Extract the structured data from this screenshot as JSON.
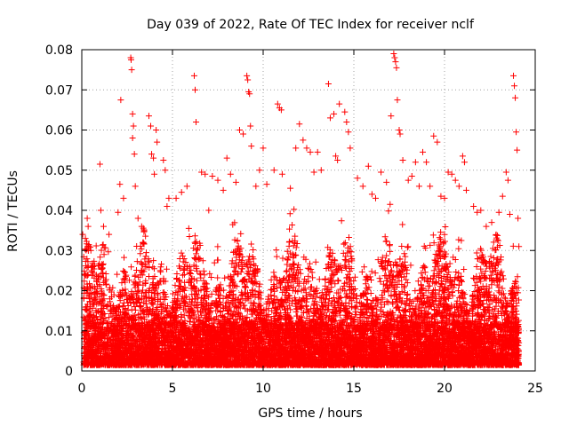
{
  "chart_data": {
    "type": "scatter",
    "title": "Day 039 of 2022, Rate Of TEC Index for receiver nclf",
    "xlabel": "GPS time / hours",
    "ylabel": "ROTI / TECUs",
    "xlim": [
      0,
      25
    ],
    "ylim": [
      0,
      0.08
    ],
    "x_ticks": [
      0,
      5,
      10,
      15,
      20,
      25
    ],
    "x_tick_labels": [
      "0",
      "5",
      "10",
      "15",
      "20",
      "25"
    ],
    "y_ticks": [
      0,
      0.01,
      0.02,
      0.03,
      0.04,
      0.05,
      0.06,
      0.07,
      0.08
    ],
    "y_tick_labels": [
      "0",
      "0.01",
      "0.02",
      "0.03",
      "0.04",
      "0.05",
      "0.06",
      "0.07",
      "0.08"
    ],
    "grid": true,
    "marker": "plus",
    "color": "#ff0000",
    "legend": "none",
    "series": [
      {
        "points": [
          [
            0.05,
            0.034
          ],
          [
            0.2,
            0.033
          ],
          [
            0.3,
            0.038
          ],
          [
            0.35,
            0.036
          ],
          [
            0.5,
            0.03
          ],
          [
            1.0,
            0.0515
          ],
          [
            1.05,
            0.04
          ],
          [
            1.2,
            0.036
          ],
          [
            1.5,
            0.034
          ],
          [
            2.0,
            0.0395
          ],
          [
            2.1,
            0.0465
          ],
          [
            2.15,
            0.0675
          ],
          [
            2.3,
            0.043
          ],
          [
            2.7,
            0.078
          ],
          [
            2.72,
            0.0775
          ],
          [
            2.75,
            0.075
          ],
          [
            2.8,
            0.064
          ],
          [
            2.85,
            0.061
          ],
          [
            2.8,
            0.058
          ],
          [
            2.9,
            0.054
          ],
          [
            2.95,
            0.046
          ],
          [
            3.1,
            0.038
          ],
          [
            3.3,
            0.036
          ],
          [
            3.7,
            0.0635
          ],
          [
            3.8,
            0.061
          ],
          [
            3.85,
            0.054
          ],
          [
            3.95,
            0.053
          ],
          [
            4.0,
            0.049
          ],
          [
            4.1,
            0.06
          ],
          [
            4.15,
            0.057
          ],
          [
            4.5,
            0.0525
          ],
          [
            4.6,
            0.05
          ],
          [
            4.7,
            0.041
          ],
          [
            4.8,
            0.043
          ],
          [
            5.2,
            0.043
          ],
          [
            5.5,
            0.0445
          ],
          [
            5.8,
            0.046
          ],
          [
            5.9,
            0.0355
          ],
          [
            6.2,
            0.0735
          ],
          [
            6.25,
            0.07
          ],
          [
            6.3,
            0.062
          ],
          [
            6.6,
            0.0495
          ],
          [
            6.8,
            0.049
          ],
          [
            7.0,
            0.04
          ],
          [
            7.2,
            0.0485
          ],
          [
            7.5,
            0.0475
          ],
          [
            7.8,
            0.045
          ],
          [
            8.0,
            0.053
          ],
          [
            8.2,
            0.049
          ],
          [
            8.5,
            0.047
          ],
          [
            8.7,
            0.06
          ],
          [
            8.9,
            0.059
          ],
          [
            9.1,
            0.0735
          ],
          [
            9.15,
            0.0725
          ],
          [
            9.2,
            0.0695
          ],
          [
            9.25,
            0.069
          ],
          [
            9.3,
            0.061
          ],
          [
            9.35,
            0.056
          ],
          [
            9.6,
            0.046
          ],
          [
            9.8,
            0.05
          ],
          [
            10.0,
            0.0555
          ],
          [
            10.2,
            0.0465
          ],
          [
            10.6,
            0.05
          ],
          [
            10.8,
            0.0665
          ],
          [
            10.9,
            0.0655
          ],
          [
            11.0,
            0.065
          ],
          [
            11.05,
            0.049
          ],
          [
            11.5,
            0.0455
          ],
          [
            11.8,
            0.0555
          ],
          [
            12.0,
            0.0615
          ],
          [
            12.2,
            0.0575
          ],
          [
            12.4,
            0.0555
          ],
          [
            12.6,
            0.0545
          ],
          [
            12.8,
            0.0495
          ],
          [
            13.0,
            0.0545
          ],
          [
            13.2,
            0.05
          ],
          [
            13.6,
            0.0715
          ],
          [
            13.7,
            0.063
          ],
          [
            13.9,
            0.064
          ],
          [
            14.0,
            0.0535
          ],
          [
            14.1,
            0.0525
          ],
          [
            14.2,
            0.0665
          ],
          [
            14.5,
            0.0645
          ],
          [
            14.6,
            0.062
          ],
          [
            14.7,
            0.0595
          ],
          [
            14.8,
            0.0555
          ],
          [
            15.2,
            0.048
          ],
          [
            15.5,
            0.046
          ],
          [
            15.8,
            0.051
          ],
          [
            16.0,
            0.044
          ],
          [
            16.2,
            0.043
          ],
          [
            16.5,
            0.0495
          ],
          [
            16.8,
            0.047
          ],
          [
            17.0,
            0.0415
          ],
          [
            17.05,
            0.0635
          ],
          [
            17.2,
            0.079
          ],
          [
            17.25,
            0.078
          ],
          [
            17.3,
            0.077
          ],
          [
            17.35,
            0.0755
          ],
          [
            17.4,
            0.0675
          ],
          [
            17.5,
            0.06
          ],
          [
            17.55,
            0.059
          ],
          [
            17.7,
            0.0525
          ],
          [
            18.0,
            0.0475
          ],
          [
            18.2,
            0.0485
          ],
          [
            18.4,
            0.052
          ],
          [
            18.6,
            0.046
          ],
          [
            18.8,
            0.0545
          ],
          [
            19.0,
            0.052
          ],
          [
            19.2,
            0.046
          ],
          [
            19.4,
            0.0585
          ],
          [
            19.6,
            0.057
          ],
          [
            19.8,
            0.0435
          ],
          [
            20.0,
            0.043
          ],
          [
            20.2,
            0.0495
          ],
          [
            20.4,
            0.049
          ],
          [
            20.6,
            0.0475
          ],
          [
            20.8,
            0.046
          ],
          [
            21.0,
            0.0535
          ],
          [
            21.1,
            0.052
          ],
          [
            21.2,
            0.045
          ],
          [
            21.6,
            0.041
          ],
          [
            21.8,
            0.0395
          ],
          [
            22.0,
            0.04
          ],
          [
            22.3,
            0.036
          ],
          [
            22.6,
            0.037
          ],
          [
            23.0,
            0.0395
          ],
          [
            23.2,
            0.0435
          ],
          [
            23.4,
            0.0495
          ],
          [
            23.5,
            0.0475
          ],
          [
            23.6,
            0.039
          ],
          [
            23.8,
            0.0735
          ],
          [
            23.85,
            0.071
          ],
          [
            23.9,
            0.068
          ],
          [
            23.95,
            0.0595
          ],
          [
            24.0,
            0.055
          ],
          [
            24.05,
            0.038
          ],
          [
            24.1,
            0.031
          ]
        ]
      }
    ]
  }
}
